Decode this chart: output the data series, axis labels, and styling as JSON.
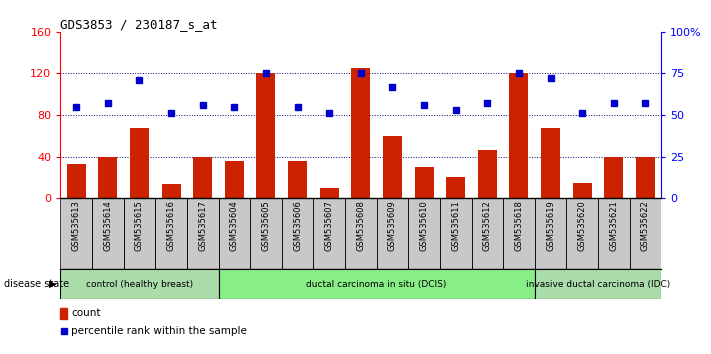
{
  "title": "GDS3853 / 230187_s_at",
  "samples": [
    "GSM535613",
    "GSM535614",
    "GSM535615",
    "GSM535616",
    "GSM535617",
    "GSM535604",
    "GSM535605",
    "GSM535606",
    "GSM535607",
    "GSM535608",
    "GSM535609",
    "GSM535610",
    "GSM535611",
    "GSM535612",
    "GSM535618",
    "GSM535619",
    "GSM535620",
    "GSM535621",
    "GSM535622"
  ],
  "counts": [
    33,
    40,
    68,
    14,
    40,
    36,
    120,
    36,
    10,
    125,
    60,
    30,
    20,
    46,
    120,
    68,
    15,
    40,
    40
  ],
  "percentiles": [
    55,
    57,
    71,
    51,
    56,
    55,
    75,
    55,
    51,
    75,
    67,
    56,
    53,
    57,
    75,
    72,
    51,
    57,
    57
  ],
  "groups": [
    {
      "label": "control (healthy breast)",
      "start": 0,
      "end": 5,
      "color": "#aaddaa"
    },
    {
      "label": "ductal carcinoma in situ (DCIS)",
      "start": 5,
      "end": 15,
      "color": "#88ee88"
    },
    {
      "label": "invasive ductal carcinoma (IDC)",
      "start": 15,
      "end": 19,
      "color": "#aaddaa"
    }
  ],
  "bar_color": "#cc2200",
  "dot_color": "#0000cc",
  "ylim_left": [
    0,
    160
  ],
  "ylim_right": [
    0,
    100
  ],
  "yticks_left": [
    0,
    40,
    80,
    120,
    160
  ],
  "yticks_right": [
    0,
    25,
    50,
    75,
    100
  ],
  "ytick_labels_right": [
    "0",
    "25",
    "50",
    "75",
    "100%"
  ],
  "grid_lines": [
    40,
    80,
    120
  ],
  "plot_bg": "#ffffff",
  "tick_bg": "#c8c8c8"
}
